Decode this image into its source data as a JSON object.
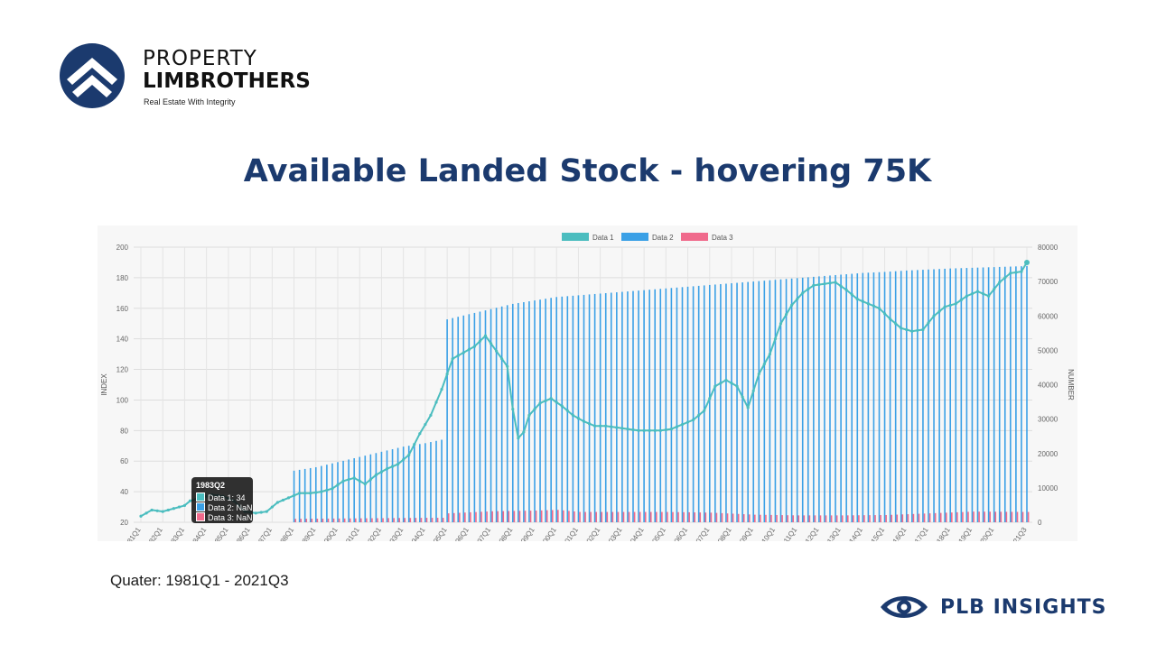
{
  "brand": {
    "line1": "PROPERTY",
    "line2": "LIMBROTHERS",
    "tagline": "Real Estate With Integrity"
  },
  "page_title": "Available Landed Stock - hovering 75K",
  "footnote": "Quater: 1981Q1 - 2021Q3",
  "footer_brand": "PLB INSIGHTS",
  "colors": {
    "navy": "#1b3a6e",
    "data1": "#4bbdbf",
    "data2": "#3aa0e6",
    "data3": "#f06a8c"
  },
  "tooltip": {
    "title": "1983Q2",
    "rows": [
      "Data 1: 34",
      "Data 2: NaN",
      "Data 3: NaN"
    ]
  },
  "chart_data": {
    "type": "bar",
    "title": "",
    "xlabel": "",
    "ylabel": "INDEX",
    "y2label": "NUMBER",
    "ylim": [
      20,
      200
    ],
    "y2lim": [
      0,
      80000
    ],
    "yticks": [
      "200",
      "180",
      "160",
      "140",
      "120",
      "100",
      "80",
      "60",
      "40",
      "20"
    ],
    "y2ticks": [
      "80000",
      "70000",
      "60000",
      "50000",
      "40000",
      "30000",
      "20000",
      "10000",
      "0"
    ],
    "legend_position": "top",
    "grid": true,
    "x_tick_labels": [
      "1981Q1",
      "1982Q1",
      "1983Q1",
      "1984Q1",
      "1985Q1",
      "1986Q1",
      "1987Q1",
      "1988Q1",
      "1989Q1",
      "1990Q1",
      "1991Q1",
      "1992Q1",
      "1993Q1",
      "1994Q1",
      "1995Q1",
      "1996Q1",
      "1997Q1",
      "1998Q1",
      "1999Q1",
      "2000Q1",
      "2001Q1",
      "2002Q1",
      "2003Q1",
      "2004Q1",
      "2005Q1",
      "2006Q1",
      "2007Q1",
      "2008Q1",
      "2009Q1",
      "2010Q1",
      "2011Q1",
      "2012Q1",
      "2013Q1",
      "2014Q1",
      "2015Q1",
      "2016Q1",
      "2017Q1",
      "2018Q1",
      "2019Q1",
      "2020Q1",
      "2021Q3"
    ],
    "series": [
      {
        "name": "Data 1",
        "type": "line",
        "axis": "left",
        "points": [
          [
            "1981Q1",
            24
          ],
          [
            "1981Q3",
            28
          ],
          [
            "1982Q1",
            27
          ],
          [
            "1982Q3",
            29
          ],
          [
            "1983Q1",
            31
          ],
          [
            "1983Q2",
            34
          ],
          [
            "1983Q4",
            36
          ],
          [
            "1984Q2",
            38
          ],
          [
            "1984Q4",
            37
          ],
          [
            "1985Q2",
            34
          ],
          [
            "1985Q4",
            27
          ],
          [
            "1986Q2",
            26
          ],
          [
            "1986Q4",
            27
          ],
          [
            "1987Q2",
            33
          ],
          [
            "1987Q4",
            36
          ],
          [
            "1988Q2",
            39
          ],
          [
            "1988Q4",
            39
          ],
          [
            "1989Q2",
            40
          ],
          [
            "1989Q4",
            42
          ],
          [
            "1990Q2",
            47
          ],
          [
            "1990Q4",
            49
          ],
          [
            "1991Q2",
            45
          ],
          [
            "1991Q4",
            51
          ],
          [
            "1992Q2",
            55
          ],
          [
            "1992Q4",
            58
          ],
          [
            "1993Q2",
            64
          ],
          [
            "1993Q4",
            78
          ],
          [
            "1994Q2",
            90
          ],
          [
            "1994Q4",
            107
          ],
          [
            "1995Q2",
            127
          ],
          [
            "1995Q4",
            131
          ],
          [
            "1996Q2",
            135
          ],
          [
            "1996Q4",
            142
          ],
          [
            "1997Q2",
            132
          ],
          [
            "1997Q4",
            122
          ],
          [
            "1998Q1",
            94
          ],
          [
            "1998Q2",
            75
          ],
          [
            "1998Q3",
            79
          ],
          [
            "1998Q4",
            90
          ],
          [
            "1999Q2",
            98
          ],
          [
            "1999Q4",
            101
          ],
          [
            "2000Q2",
            96
          ],
          [
            "2000Q4",
            90
          ],
          [
            "2001Q2",
            86
          ],
          [
            "2001Q4",
            83
          ],
          [
            "2002Q2",
            83
          ],
          [
            "2002Q4",
            82
          ],
          [
            "2003Q2",
            81
          ],
          [
            "2003Q4",
            80
          ],
          [
            "2004Q2",
            80
          ],
          [
            "2004Q4",
            80
          ],
          [
            "2005Q2",
            81
          ],
          [
            "2005Q4",
            84
          ],
          [
            "2006Q2",
            87
          ],
          [
            "2006Q4",
            93
          ],
          [
            "2007Q2",
            109
          ],
          [
            "2007Q4",
            113
          ],
          [
            "2008Q2",
            109
          ],
          [
            "2008Q4",
            95
          ],
          [
            "2009Q2",
            117
          ],
          [
            "2009Q4",
            130
          ],
          [
            "2010Q2",
            150
          ],
          [
            "2010Q4",
            162
          ],
          [
            "2011Q2",
            170
          ],
          [
            "2011Q4",
            175
          ],
          [
            "2012Q2",
            176
          ],
          [
            "2012Q4",
            177
          ],
          [
            "2013Q2",
            172
          ],
          [
            "2013Q4",
            166
          ],
          [
            "2014Q2",
            163
          ],
          [
            "2014Q4",
            160
          ],
          [
            "2015Q2",
            153
          ],
          [
            "2015Q4",
            147
          ],
          [
            "2016Q2",
            145
          ],
          [
            "2016Q4",
            146
          ],
          [
            "2017Q2",
            155
          ],
          [
            "2017Q4",
            161
          ],
          [
            "2018Q2",
            163
          ],
          [
            "2018Q4",
            168
          ],
          [
            "2019Q2",
            171
          ],
          [
            "2019Q4",
            168
          ],
          [
            "2020Q2",
            177
          ],
          [
            "2020Q4",
            183
          ],
          [
            "2021Q2",
            184
          ],
          [
            "2021Q3",
            190
          ]
        ]
      },
      {
        "name": "Data 2",
        "type": "bar",
        "axis": "right",
        "points": [
          [
            "1988Q1",
            15000
          ],
          [
            "1989Q1",
            16000
          ],
          [
            "1990Q1",
            17500
          ],
          [
            "1991Q1",
            19000
          ],
          [
            "1992Q1",
            20500
          ],
          [
            "1993Q1",
            22000
          ],
          [
            "1994Q1",
            23000
          ],
          [
            "1994Q4",
            24000
          ],
          [
            "1995Q1",
            59000
          ],
          [
            "1996Q1",
            60500
          ],
          [
            "1997Q1",
            62000
          ],
          [
            "1998Q1",
            63500
          ],
          [
            "1999Q1",
            64500
          ],
          [
            "2000Q1",
            65500
          ],
          [
            "2001Q1",
            66000
          ],
          [
            "2002Q1",
            66500
          ],
          [
            "2003Q1",
            67000
          ],
          [
            "2004Q1",
            67500
          ],
          [
            "2005Q1",
            68000
          ],
          [
            "2006Q1",
            68500
          ],
          [
            "2007Q1",
            69000
          ],
          [
            "2008Q1",
            69500
          ],
          [
            "2009Q1",
            70000
          ],
          [
            "2010Q1",
            70500
          ],
          [
            "2011Q1",
            71000
          ],
          [
            "2012Q1",
            71500
          ],
          [
            "2013Q1",
            72000
          ],
          [
            "2014Q1",
            72500
          ],
          [
            "2015Q1",
            72800
          ],
          [
            "2016Q1",
            73200
          ],
          [
            "2017Q1",
            73500
          ],
          [
            "2018Q1",
            73800
          ],
          [
            "2019Q1",
            74000
          ],
          [
            "2020Q1",
            74200
          ],
          [
            "2021Q3",
            74500
          ]
        ]
      },
      {
        "name": "Data 3",
        "type": "bar",
        "axis": "right",
        "points": [
          [
            "1988Q1",
            1000
          ],
          [
            "1990Q1",
            1100
          ],
          [
            "1992Q1",
            1200
          ],
          [
            "1994Q1",
            1300
          ],
          [
            "1995Q1",
            2600
          ],
          [
            "1997Q1",
            3200
          ],
          [
            "1999Q1",
            3400
          ],
          [
            "2000Q1",
            3600
          ],
          [
            "2001Q1",
            3000
          ],
          [
            "2003Q1",
            3000
          ],
          [
            "2005Q1",
            3000
          ],
          [
            "2007Q1",
            2800
          ],
          [
            "2009Q1",
            2200
          ],
          [
            "2011Q1",
            2000
          ],
          [
            "2013Q1",
            2000
          ],
          [
            "2015Q1",
            2100
          ],
          [
            "2017Q1",
            2600
          ],
          [
            "2019Q1",
            3100
          ],
          [
            "2021Q3",
            3000
          ]
        ]
      }
    ]
  }
}
